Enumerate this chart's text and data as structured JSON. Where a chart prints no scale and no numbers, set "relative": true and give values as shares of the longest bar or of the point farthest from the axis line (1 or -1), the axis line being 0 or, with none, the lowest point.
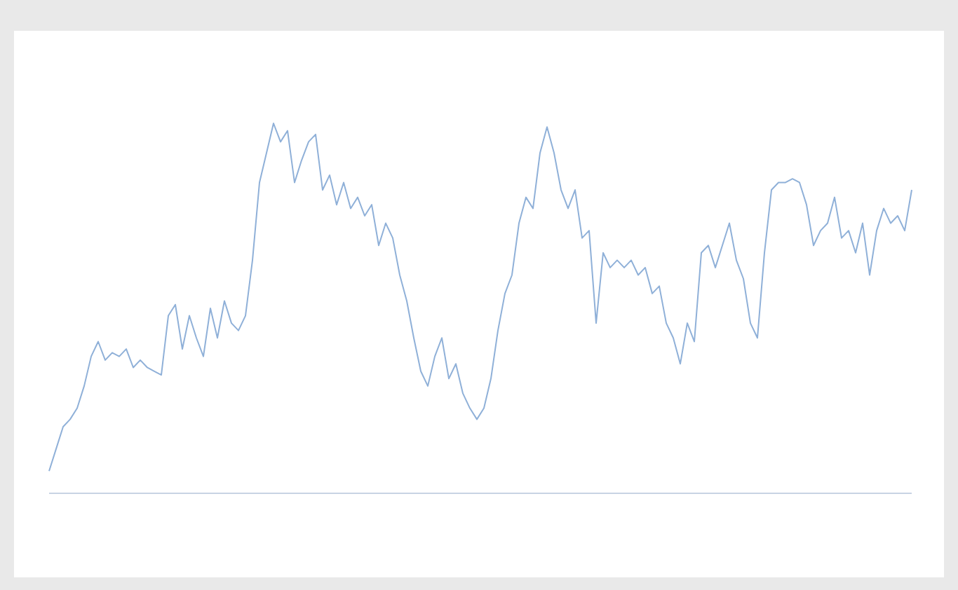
{
  "chart_data": {
    "type": "line",
    "relative": true,
    "categories": [
      null,
      null,
      null,
      null,
      null,
      null,
      null,
      null,
      null,
      null,
      null,
      null,
      null,
      null,
      null,
      null,
      null,
      null,
      null,
      null,
      null,
      null,
      null,
      null,
      null,
      null,
      null,
      null,
      null,
      null,
      null,
      null,
      null,
      null,
      null,
      null,
      null,
      null,
      null,
      null,
      null,
      null,
      null,
      null,
      null,
      null,
      null,
      null,
      null,
      null,
      null,
      null,
      null,
      null,
      null,
      null,
      null,
      null,
      null,
      null,
      null,
      null,
      null,
      null,
      null,
      null,
      null,
      null,
      null,
      null,
      null,
      null,
      null,
      null,
      null,
      null,
      null,
      null,
      null,
      null,
      null,
      null,
      null,
      null,
      null,
      null,
      null,
      null,
      null,
      null,
      null,
      null,
      null,
      null,
      null,
      null,
      null,
      null,
      null,
      null,
      null,
      null,
      null,
      null,
      null,
      null,
      null,
      null,
      null,
      null,
      null,
      null,
      null,
      null,
      null,
      null,
      null,
      null,
      null,
      null,
      null,
      null,
      null,
      null
    ],
    "series": [
      {
        "color": "#8fb0d8",
        "values": [
          0.06,
          0.12,
          0.18,
          0.2,
          0.23,
          0.29,
          0.37,
          0.41,
          0.36,
          0.38,
          0.37,
          0.39,
          0.34,
          0.36,
          0.34,
          0.33,
          0.32,
          0.48,
          0.51,
          0.39,
          0.48,
          0.42,
          0.37,
          0.5,
          0.42,
          0.52,
          0.46,
          0.44,
          0.48,
          0.63,
          0.84,
          0.92,
          1,
          0.95,
          0.98,
          0.84,
          0.9,
          0.95,
          0.97,
          0.82,
          0.86,
          0.78,
          0.84,
          0.77,
          0.8,
          0.75,
          0.78,
          0.67,
          0.73,
          0.69,
          0.59,
          0.52,
          0.42,
          0.33,
          0.29,
          0.37,
          0.42,
          0.31,
          0.35,
          0.27,
          0.23,
          0.2,
          0.23,
          0.31,
          0.44,
          0.54,
          0.59,
          0.73,
          0.8,
          0.77,
          0.92,
          0.99,
          0.92,
          0.82,
          0.77,
          0.82,
          0.69,
          0.71,
          0.46,
          0.65,
          0.61,
          0.63,
          0.61,
          0.63,
          0.59,
          0.61,
          0.54,
          0.56,
          0.46,
          0.42,
          0.35,
          0.46,
          0.41,
          0.65,
          0.67,
          0.61,
          0.67,
          0.73,
          0.63,
          0.58,
          0.46,
          0.42,
          0.65,
          0.82,
          0.84,
          0.84,
          0.85,
          0.84,
          0.78,
          0.67,
          0.71,
          0.73,
          0.8,
          0.69,
          0.71,
          0.65,
          0.73,
          0.59,
          0.71,
          0.77,
          0.73,
          0.75,
          0.71,
          0.82
        ]
      }
    ]
  }
}
